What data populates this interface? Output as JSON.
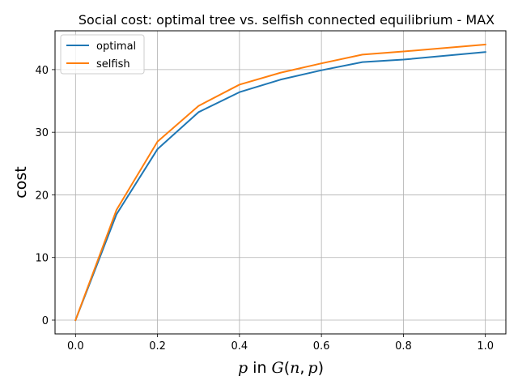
{
  "chart_data": {
    "type": "line",
    "title": "Social cost: optimal tree vs. selfish connected equilibrium - MAX",
    "xlabel": {
      "p": "p",
      "in": "in",
      "G": "G",
      "open": "(",
      "n": "n",
      "comma": ",",
      "p2": "p",
      "close": ")"
    },
    "ylabel": "cost",
    "x": [
      0.0,
      0.1,
      0.2,
      0.3,
      0.4,
      0.5,
      0.6,
      0.7,
      0.8,
      1.0
    ],
    "series": [
      {
        "name": "optimal",
        "color": "#1f77b4",
        "values": [
          0,
          16.9,
          27.3,
          33.2,
          36.4,
          38.4,
          39.9,
          41.2,
          41.6,
          42.8
        ]
      },
      {
        "name": "selfish",
        "color": "#ff7f0e",
        "values": [
          0,
          17.6,
          28.5,
          34.2,
          37.6,
          39.5,
          41.0,
          42.4,
          42.9,
          44.0
        ]
      }
    ],
    "xlim": [
      -0.05,
      1.05
    ],
    "ylim": [
      -2.2,
      46.2
    ],
    "xticks": [
      0.0,
      0.2,
      0.4,
      0.6,
      0.8,
      1.0
    ],
    "xtick_labels": [
      "0.0",
      "0.2",
      "0.4",
      "0.6",
      "0.8",
      "1.0"
    ],
    "yticks": [
      0,
      10,
      20,
      30,
      40
    ],
    "ytick_labels": [
      "0",
      "10",
      "20",
      "30",
      "40"
    ],
    "grid": true,
    "legend_position": "upper-left"
  }
}
